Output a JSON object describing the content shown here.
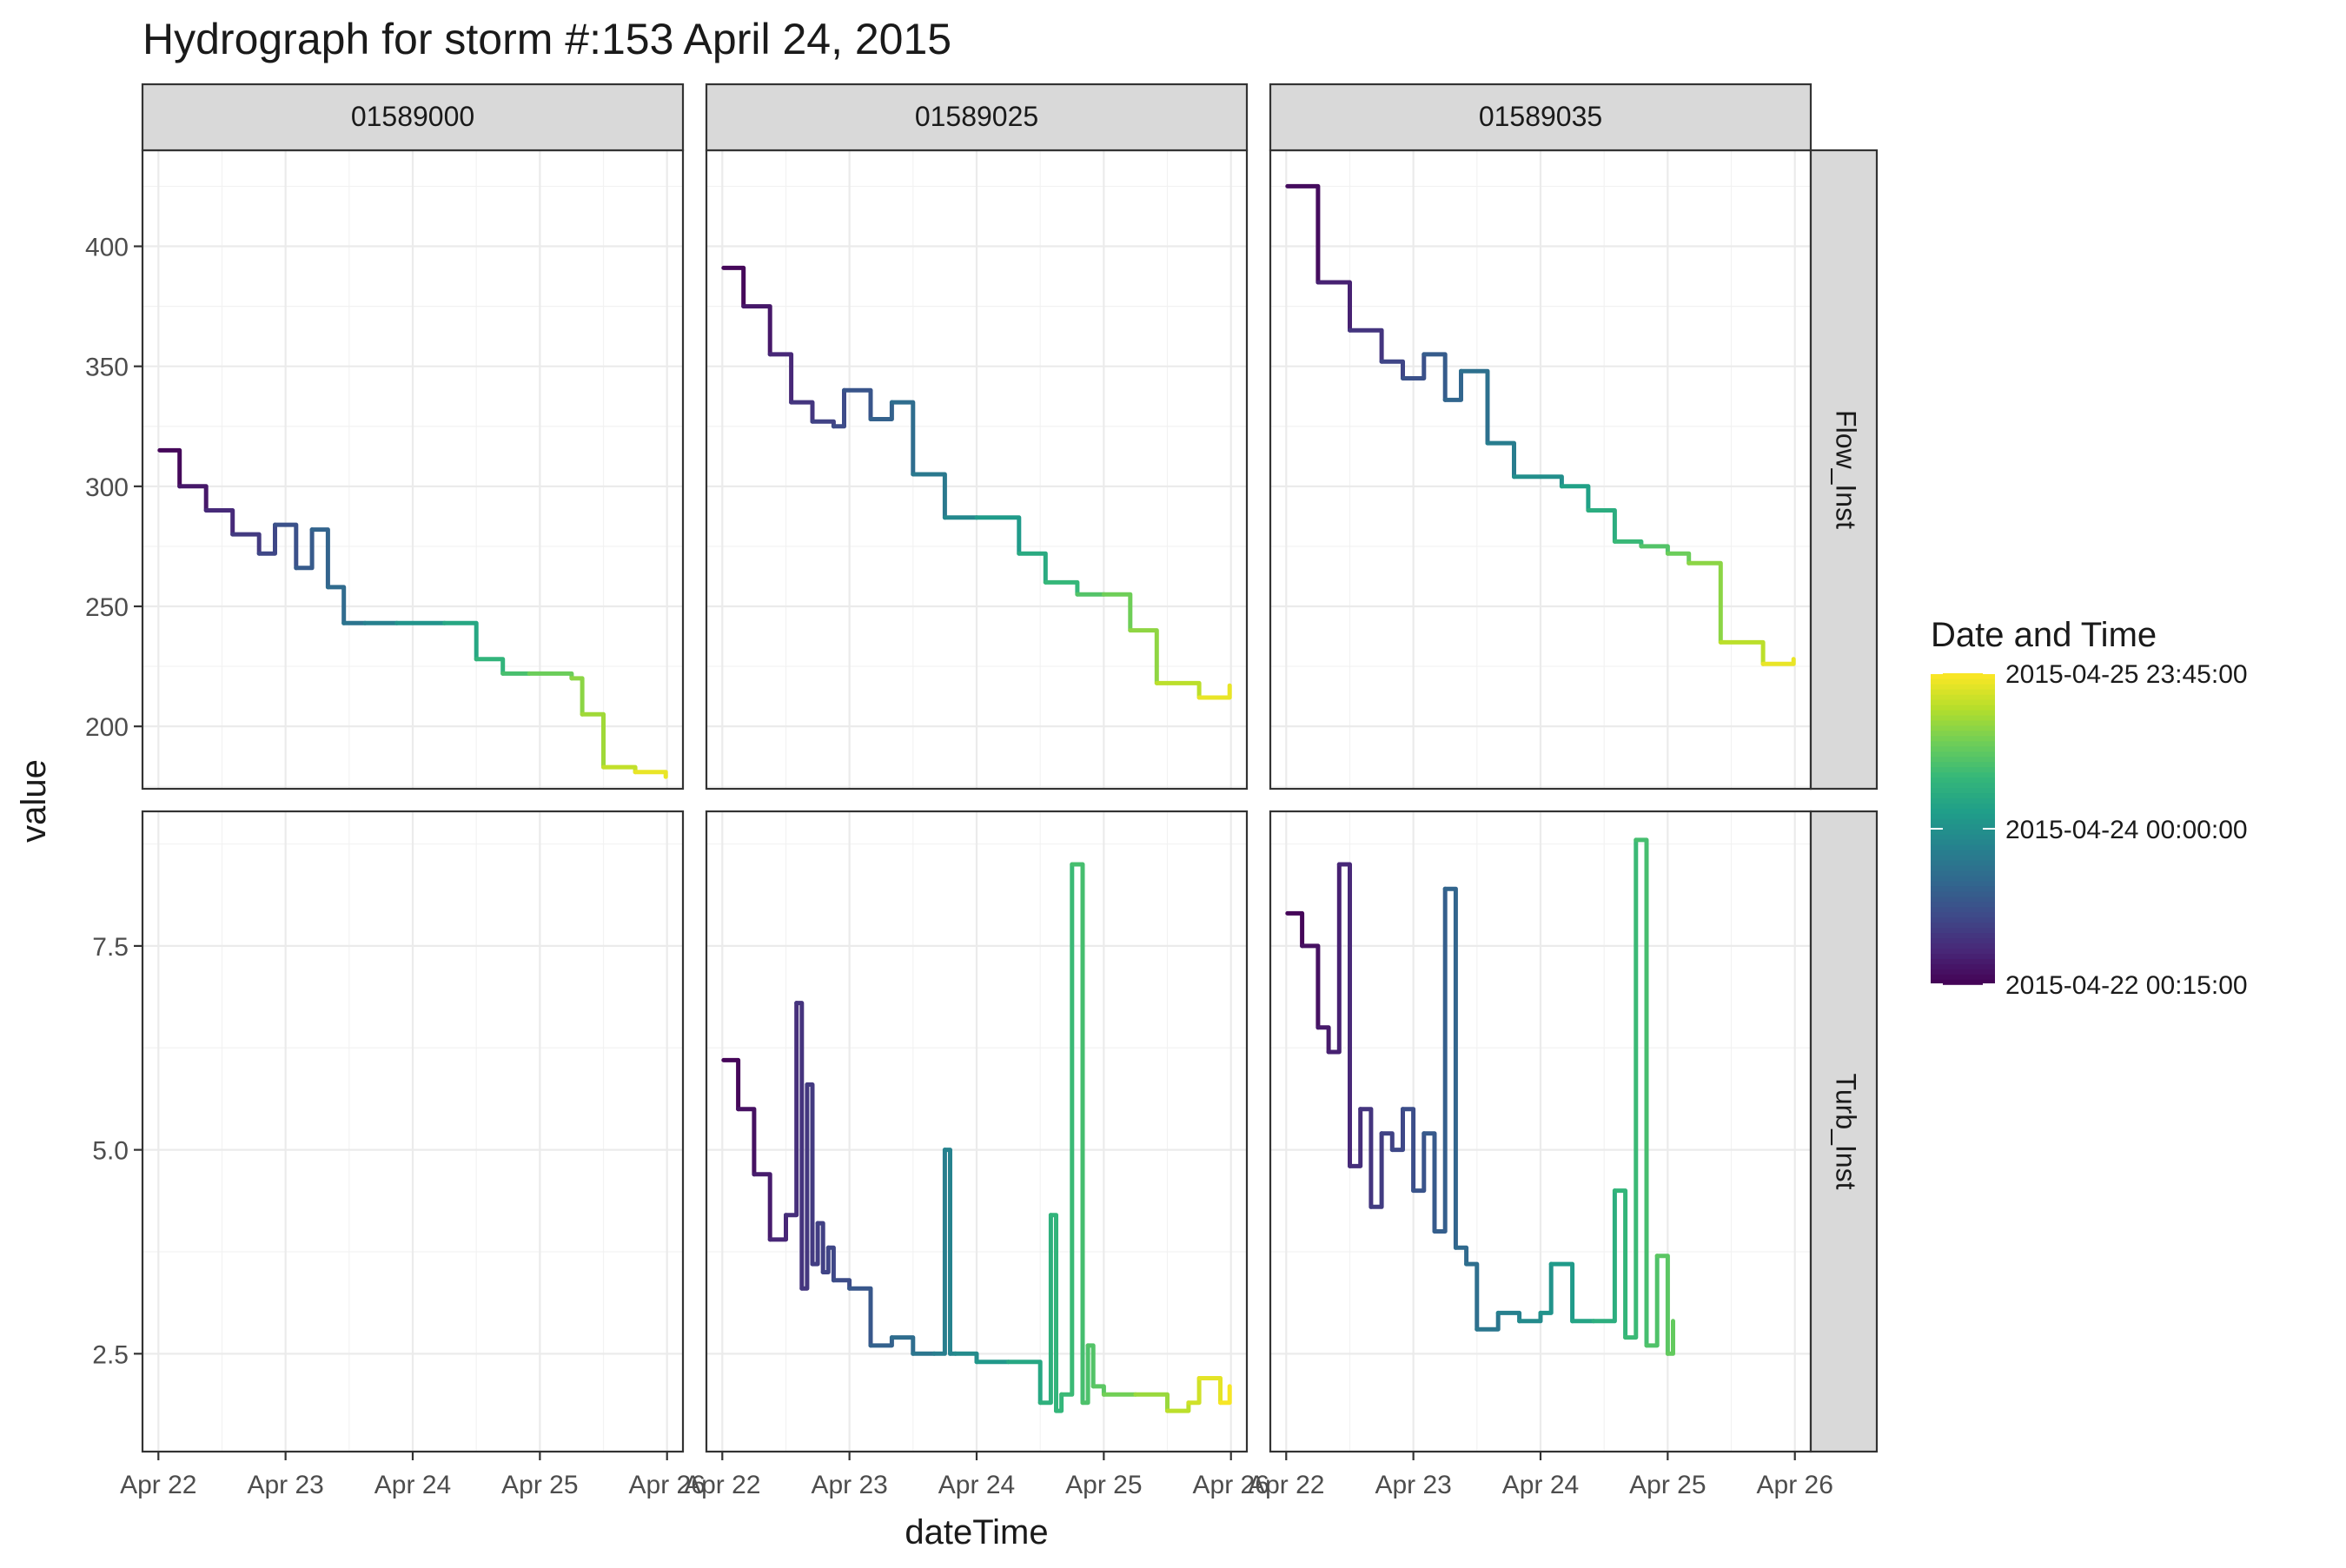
{
  "chart_data": {
    "type": "line",
    "title": "Hydrograph for storm #:153   April 24, 2015",
    "xlabel": "dateTime",
    "ylabel": "value",
    "x_range": [
      "2015-04-21T21:00",
      "2015-04-26T03:00"
    ],
    "x_ticks": [
      {
        "label": "Apr 22",
        "value": "2015-04-22"
      },
      {
        "label": "Apr 23",
        "value": "2015-04-23"
      },
      {
        "label": "Apr 24",
        "value": "2015-04-24"
      },
      {
        "label": "Apr 25",
        "value": "2015-04-25"
      },
      {
        "label": "Apr 26",
        "value": "2015-04-26"
      }
    ],
    "facet_columns": [
      "01589000",
      "01589025",
      "01589035"
    ],
    "facet_rows": [
      {
        "label": "Flow_Inst",
        "ylim": [
          174,
          440
        ],
        "y_ticks": [
          200,
          250,
          300,
          350,
          400
        ],
        "y_tick_labels": [
          "200",
          "250",
          "300",
          "350",
          "400"
        ]
      },
      {
        "label": "Turb_Inst",
        "ylim": [
          1.3,
          9.15
        ],
        "y_ticks": [
          2.5,
          5.0,
          7.5
        ],
        "y_tick_labels": [
          "2.5",
          "5.0",
          "7.5"
        ]
      }
    ],
    "grid": true,
    "legend": {
      "title": "Date and Time",
      "position": "right",
      "type": "colorbar",
      "colormap": "viridis",
      "min": "2015-04-22T00:15",
      "max": "2015-04-25T23:45",
      "breaks": [
        {
          "label": "2015-04-22 00:15:00",
          "value": "2015-04-22T00:15"
        },
        {
          "label": "2015-04-24 00:00:00",
          "value": "2015-04-24T00:00"
        },
        {
          "label": "2015-04-25 23:45:00",
          "value": "2015-04-25T23:45"
        }
      ]
    },
    "series": [
      {
        "site": "01589000",
        "param": "Flow_Inst",
        "x": [
          "2015-04-22T00:15",
          "2015-04-22T04:00",
          "2015-04-22T09:00",
          "2015-04-22T14:00",
          "2015-04-22T19:00",
          "2015-04-22T22:00",
          "2015-04-23T02:00",
          "2015-04-23T05:00",
          "2015-04-23T08:00",
          "2015-04-23T11:00",
          "2015-04-23T15:00",
          "2015-04-23T21:00",
          "2015-04-24T06:00",
          "2015-04-24T12:00",
          "2015-04-24T17:00",
          "2015-04-24T22:00",
          "2015-04-25T06:00",
          "2015-04-25T08:00",
          "2015-04-25T12:00",
          "2015-04-25T18:00",
          "2015-04-25T23:45"
        ],
        "y": [
          315,
          300,
          290,
          280,
          272,
          284,
          266,
          282,
          258,
          243,
          243,
          243,
          243,
          228,
          222,
          222,
          220,
          205,
          183,
          181,
          179
        ]
      },
      {
        "site": "01589025",
        "param": "Flow_Inst",
        "x": [
          "2015-04-22T00:15",
          "2015-04-22T04:00",
          "2015-04-22T09:00",
          "2015-04-22T13:00",
          "2015-04-22T17:00",
          "2015-04-22T21:00",
          "2015-04-22T23:00",
          "2015-04-23T04:00",
          "2015-04-23T08:00",
          "2015-04-23T12:00",
          "2015-04-23T18:00",
          "2015-04-24T00:00",
          "2015-04-24T08:00",
          "2015-04-24T13:00",
          "2015-04-24T19:00",
          "2015-04-25T00:00",
          "2015-04-25T05:00",
          "2015-04-25T10:00",
          "2015-04-25T18:00",
          "2015-04-25T23:45"
        ],
        "y": [
          391,
          375,
          355,
          335,
          327,
          325,
          340,
          328,
          335,
          305,
          287,
          287,
          272,
          260,
          255,
          255,
          240,
          218,
          212,
          217
        ]
      },
      {
        "site": "01589035",
        "param": "Flow_Inst",
        "x": [
          "2015-04-22T00:15",
          "2015-04-22T06:00",
          "2015-04-22T12:00",
          "2015-04-22T18:00",
          "2015-04-22T22:00",
          "2015-04-23T02:00",
          "2015-04-23T06:00",
          "2015-04-23T09:00",
          "2015-04-23T14:00",
          "2015-04-23T19:00",
          "2015-04-24T04:00",
          "2015-04-24T09:00",
          "2015-04-24T14:00",
          "2015-04-24T19:00",
          "2015-04-25T00:00",
          "2015-04-25T04:00",
          "2015-04-25T10:00",
          "2015-04-25T18:00",
          "2015-04-25T23:45"
        ],
        "y": [
          425,
          385,
          365,
          352,
          345,
          355,
          336,
          348,
          318,
          304,
          300,
          290,
          277,
          275,
          272,
          268,
          235,
          226,
          228
        ]
      },
      {
        "site": "01589025",
        "param": "Turb_Inst",
        "x": [
          "2015-04-22T00:15",
          "2015-04-22T03:00",
          "2015-04-22T06:00",
          "2015-04-22T09:00",
          "2015-04-22T12:00",
          "2015-04-22T14:00",
          "2015-04-22T15:00",
          "2015-04-22T16:00",
          "2015-04-22T17:00",
          "2015-04-22T18:00",
          "2015-04-22T19:00",
          "2015-04-22T20:00",
          "2015-04-22T21:00",
          "2015-04-23T00:00",
          "2015-04-23T04:00",
          "2015-04-23T08:00",
          "2015-04-23T12:00",
          "2015-04-23T16:00",
          "2015-04-23T18:00",
          "2015-04-23T19:00",
          "2015-04-23T20:00",
          "2015-04-24T00:00",
          "2015-04-24T06:00",
          "2015-04-24T12:00",
          "2015-04-24T14:00",
          "2015-04-24T15:00",
          "2015-04-24T16:00",
          "2015-04-24T18:00",
          "2015-04-24T20:00",
          "2015-04-24T21:00",
          "2015-04-24T22:00",
          "2015-04-25T00:00",
          "2015-04-25T06:00",
          "2015-04-25T12:00",
          "2015-04-25T16:00",
          "2015-04-25T18:00",
          "2015-04-25T22:00",
          "2015-04-25T23:45"
        ],
        "y": [
          6.1,
          5.5,
          4.7,
          3.9,
          4.2,
          6.8,
          3.3,
          5.8,
          3.6,
          4.1,
          3.5,
          3.8,
          3.4,
          3.3,
          2.6,
          2.7,
          2.5,
          2.5,
          5.0,
          2.5,
          2.5,
          2.4,
          2.4,
          1.9,
          4.2,
          1.8,
          2.0,
          8.5,
          1.9,
          2.6,
          2.1,
          2.0,
          2.0,
          1.8,
          1.9,
          2.2,
          1.9,
          2.1
        ]
      },
      {
        "site": "01589035",
        "param": "Turb_Inst",
        "x": [
          "2015-04-22T00:15",
          "2015-04-22T03:00",
          "2015-04-22T06:00",
          "2015-04-22T08:00",
          "2015-04-22T10:00",
          "2015-04-22T12:00",
          "2015-04-22T14:00",
          "2015-04-22T16:00",
          "2015-04-22T18:00",
          "2015-04-22T20:00",
          "2015-04-22T22:00",
          "2015-04-23T00:00",
          "2015-04-23T02:00",
          "2015-04-23T04:00",
          "2015-04-23T06:00",
          "2015-04-23T08:00",
          "2015-04-23T10:00",
          "2015-04-23T12:00",
          "2015-04-23T16:00",
          "2015-04-23T20:00",
          "2015-04-24T00:00",
          "2015-04-24T02:00",
          "2015-04-24T06:00",
          "2015-04-24T10:00",
          "2015-04-24T14:00",
          "2015-04-24T16:00",
          "2015-04-24T18:00",
          "2015-04-24T20:00",
          "2015-04-24T22:00",
          "2015-04-25T00:00",
          "2015-04-25T01:00"
        ],
        "y": [
          7.9,
          7.5,
          6.5,
          6.2,
          8.5,
          4.8,
          5.5,
          4.3,
          5.2,
          5.0,
          5.5,
          4.5,
          5.2,
          4.0,
          8.2,
          3.8,
          3.6,
          2.8,
          3.0,
          2.9,
          3.0,
          3.6,
          2.9,
          2.9,
          4.5,
          2.7,
          8.8,
          2.6,
          3.7,
          2.5,
          2.9
        ]
      }
    ]
  }
}
